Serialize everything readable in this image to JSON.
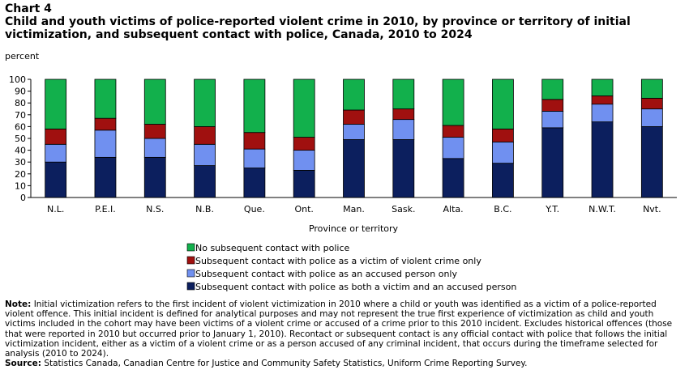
{
  "chart_data": {
    "type": "stacked_bar",
    "chart_label": "Chart 4",
    "title": "Child and youth victims of police-reported violent crime in 2010, by province or territory of initial victimization, and subsequent contact with police, Canada, 2010 to 2024",
    "y_label": "percent",
    "x_label": "Province or territory",
    "categories": [
      "N.L.",
      "P.E.I.",
      "N.S.",
      "N.B.",
      "Que.",
      "Ont.",
      "Man.",
      "Sask.",
      "Alta.",
      "B.C.",
      "Y.T.",
      "N.W.T.",
      "Nvt."
    ],
    "series": [
      {
        "name": "Subsequent contact with police as both a victim and an accused person",
        "color": "#0c1f5e",
        "values": [
          30,
          34,
          34,
          27,
          25,
          23,
          49,
          49,
          33,
          29,
          59,
          64,
          60
        ]
      },
      {
        "name": "Subsequent contact with police as an accused person only",
        "color": "#7090f0",
        "values": [
          15,
          23,
          16,
          18,
          16,
          17,
          13,
          17,
          18,
          18,
          14,
          15,
          15
        ]
      },
      {
        "name": "Subsequent contact with police as a victim of violent crime only",
        "color": "#a0100f",
        "values": [
          13,
          10,
          12,
          15,
          14,
          11,
          12,
          9,
          10,
          11,
          10,
          7,
          9
        ]
      },
      {
        "name": "No subsequent contact with police",
        "color": "#12b04c",
        "values": [
          42,
          33,
          38,
          40,
          45,
          49,
          26,
          25,
          39,
          42,
          17,
          14,
          16
        ]
      }
    ],
    "ylim": [
      0,
      100
    ],
    "yticks": [
      0,
      10,
      20,
      30,
      40,
      50,
      60,
      70,
      80,
      90,
      100
    ],
    "grid": false,
    "note_label": "Note:",
    "note": "Initial victimization refers to the first incident of violent victimization in 2010 where a child or youth was identified as a victim of a police-reported violent offence. This initial incident is defined for analytical purposes and may not represent the true first experience of victimization as child and youth victims included in the cohort may have been victims of a violent crime or accused of a crime prior to this 2010 incident. Excludes historical offences (those that were reported in 2010 but occurred prior to January 1, 2010). Recontact or subsequent contact is any official contact with police that follows the initial victimization incident, either as a victim of a violent crime or as a person accused of any criminal incident, that occurs during the timeframe selected for analysis (2010 to 2024).",
    "source_label": "Source:",
    "source": "Statistics Canada, Canadian Centre for Justice and Community Safety Statistics, Uniform Crime Reporting Survey."
  }
}
